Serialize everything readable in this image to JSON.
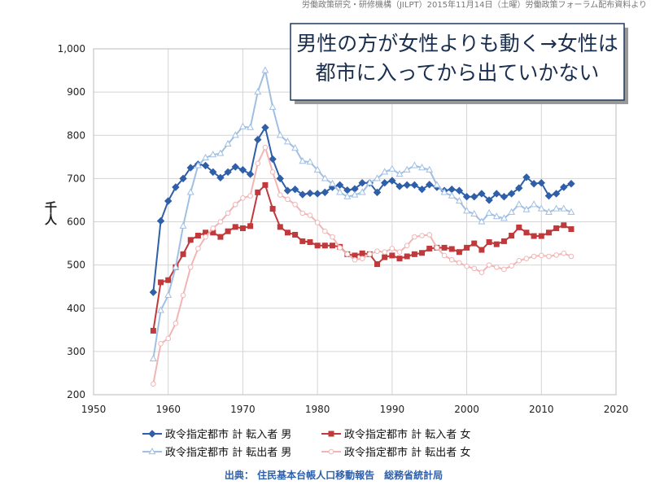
{
  "chart_data": {
    "type": "line",
    "header": "労働政策研究・研修機構（JILPT）2015年11月14日（土曜）労働政策フォーラム配布資料より",
    "annotation": [
      "男性の方が女性よりも動く→女性は",
      "都市に入ってから出ていかない"
    ],
    "y_label": "千人",
    "source": "出典： 住民基本台帳人口移動報告　総務省統計局",
    "x": [
      1958,
      1959,
      1960,
      1961,
      1962,
      1963,
      1964,
      1965,
      1966,
      1967,
      1968,
      1969,
      1970,
      1971,
      1972,
      1973,
      1974,
      1975,
      1976,
      1977,
      1978,
      1979,
      1980,
      1981,
      1982,
      1983,
      1984,
      1985,
      1986,
      1987,
      1988,
      1989,
      1990,
      1991,
      1992,
      1993,
      1994,
      1995,
      1996,
      1997,
      1998,
      1999,
      2000,
      2001,
      2002,
      2003,
      2004,
      2005,
      2006,
      2007,
      2008,
      2009,
      2010,
      2011,
      2012,
      2013,
      2014
    ],
    "xlim": [
      1950,
      2020
    ],
    "xticks": [
      1950,
      1960,
      1970,
      1980,
      1990,
      2000,
      2010,
      2020
    ],
    "ylim": [
      200,
      1000
    ],
    "yticks": [
      200,
      300,
      400,
      500,
      600,
      700,
      800,
      900,
      {
        "value": 1000,
        "label": "1,000"
      }
    ],
    "grid": true,
    "series": [
      {
        "name": "政令指定都市 計 転入者 男",
        "color": "#2e5fa8",
        "marker": "diamond",
        "values": [
          437,
          602,
          648,
          680,
          700,
          725,
          733,
          730,
          715,
          702,
          715,
          727,
          720,
          710,
          790,
          818,
          745,
          700,
          672,
          675,
          663,
          666,
          665,
          668,
          680,
          685,
          673,
          676,
          690,
          690,
          668,
          690,
          695,
          682,
          685,
          685,
          675,
          686,
          680,
          672,
          675,
          672,
          658,
          658,
          665,
          650,
          665,
          658,
          665,
          678,
          703,
          688,
          690,
          660,
          665,
          680,
          688
        ]
      },
      {
        "name": "政令指定都市 計 転入者 女",
        "color": "#c0393b",
        "marker": "square",
        "values": [
          348,
          460,
          465,
          495,
          525,
          558,
          568,
          575,
          575,
          565,
          578,
          588,
          585,
          590,
          668,
          685,
          630,
          588,
          575,
          570,
          555,
          553,
          545,
          545,
          545,
          542,
          525,
          522,
          527,
          525,
          502,
          518,
          522,
          515,
          520,
          525,
          528,
          538,
          540,
          540,
          537,
          530,
          540,
          550,
          535,
          553,
          548,
          555,
          568,
          587,
          575,
          567,
          567,
          575,
          585,
          592,
          583
        ]
      },
      {
        "name": "政令指定都市 計 転出者 男",
        "color": "#9fbfe3",
        "marker": "triangle",
        "values": [
          283,
          395,
          430,
          495,
          590,
          668,
          730,
          748,
          755,
          758,
          780,
          800,
          820,
          818,
          900,
          950,
          865,
          800,
          785,
          770,
          740,
          738,
          720,
          700,
          688,
          668,
          658,
          662,
          668,
          690,
          700,
          715,
          722,
          710,
          720,
          730,
          725,
          720,
          685,
          668,
          660,
          648,
          625,
          618,
          600,
          620,
          612,
          608,
          622,
          640,
          628,
          640,
          630,
          622,
          630,
          630,
          622
        ]
      },
      {
        "name": "政令指定都市 計 転出者 女",
        "color": "#f2b5b5",
        "marker": "circle",
        "values": [
          225,
          318,
          330,
          365,
          430,
          495,
          538,
          565,
          585,
          600,
          620,
          640,
          655,
          660,
          735,
          772,
          715,
          662,
          652,
          640,
          620,
          615,
          598,
          578,
          565,
          540,
          525,
          512,
          515,
          525,
          532,
          530,
          538,
          530,
          545,
          565,
          568,
          570,
          540,
          522,
          512,
          505,
          497,
          492,
          483,
          500,
          495,
          490,
          498,
          510,
          515,
          520,
          522,
          520,
          523,
          527,
          520
        ]
      }
    ]
  }
}
